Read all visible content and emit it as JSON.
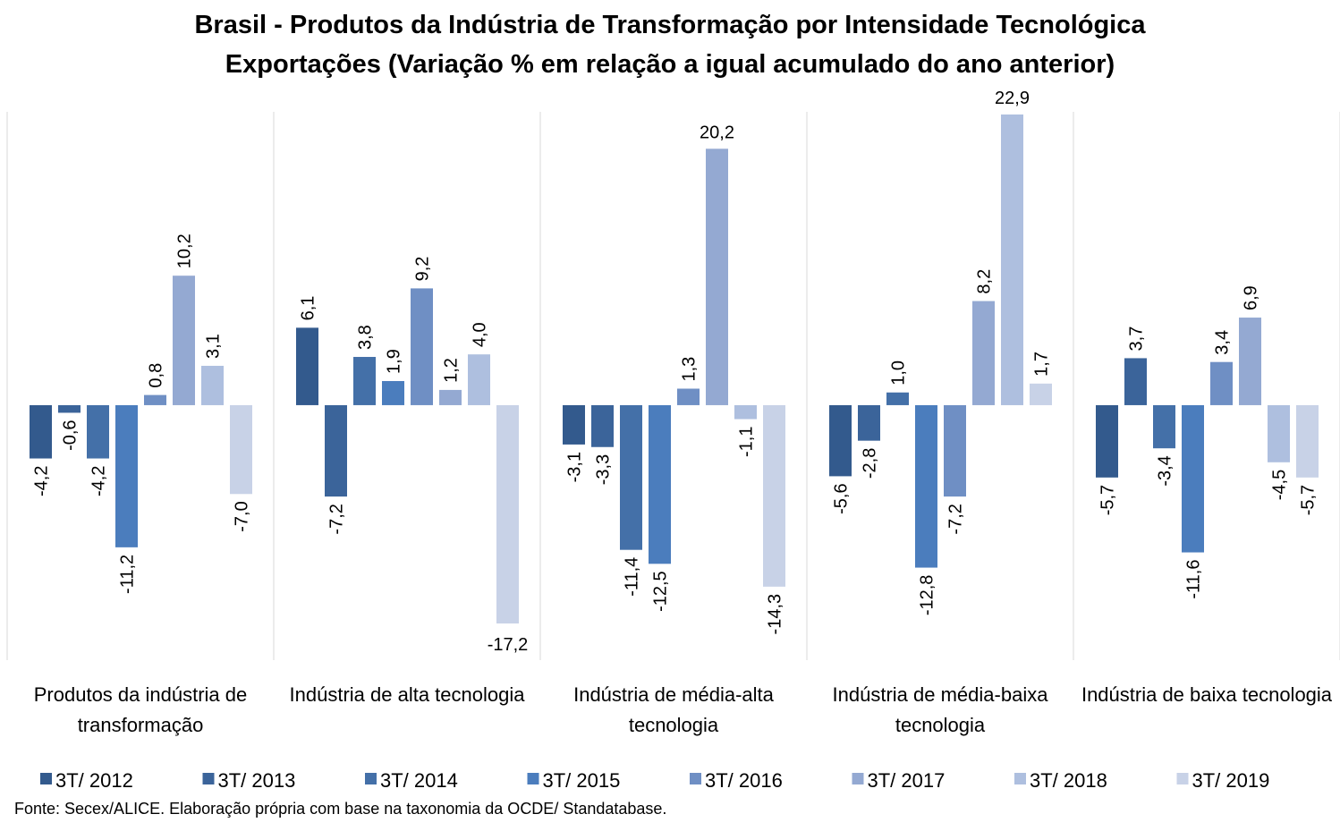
{
  "chart_data": {
    "type": "bar",
    "title": "Brasil - Produtos da Indústria de Transformação por Intensidade Tecnológica",
    "subtitle": "Exportações (Variação % em relação a igual acumulado do ano anterior)",
    "source": "Fonte: Secex/ALICE. Elaboração própria com base na taxonomia da OCDE/ Standatabase.",
    "categories": [
      "Produtos da indústria de transformação",
      "Indústria de alta tecnologia",
      "Indústria de média-alta tecnologia",
      "Indústria de média-baixa tecnologia",
      "Indústria de baixa tecnologia"
    ],
    "series": [
      {
        "name": "3T/ 2012",
        "color": "#335a8d",
        "values": [
          -4.2,
          6.1,
          -3.1,
          -5.6,
          -5.7
        ],
        "value_labels": [
          "-4,2",
          "6,1",
          "-3,1",
          "-5,6",
          "-5,7"
        ]
      },
      {
        "name": "3T/ 2013",
        "color": "#3b649a",
        "values": [
          -0.6,
          -7.2,
          -3.3,
          -2.8,
          3.7
        ],
        "value_labels": [
          "-0,6",
          "-7,2",
          "-3,3",
          "-2,8",
          "3,7"
        ]
      },
      {
        "name": "3T/ 2014",
        "color": "#4470a8",
        "values": [
          -4.2,
          3.8,
          -11.4,
          1.0,
          -3.4
        ],
        "value_labels": [
          "-4,2",
          "3,8",
          "-11,4",
          "1,0",
          "-3,4"
        ]
      },
      {
        "name": "3T/ 2015",
        "color": "#4b7dbd",
        "values": [
          -11.2,
          1.9,
          -12.5,
          -12.8,
          -11.6
        ],
        "value_labels": [
          "-11,2",
          "1,9",
          "-12,5",
          "-12,8",
          "-11,6"
        ]
      },
      {
        "name": "3T/ 2016",
        "color": "#6f8fc4",
        "values": [
          0.8,
          9.2,
          1.3,
          -7.2,
          3.4
        ],
        "value_labels": [
          "0,8",
          "9,2",
          "1,3",
          "-7,2",
          "3,4"
        ]
      },
      {
        "name": "3T/ 2017",
        "color": "#94a9d2",
        "values": [
          10.2,
          1.2,
          20.2,
          8.2,
          6.9
        ],
        "value_labels": [
          "10,2",
          "1,2",
          "20,2",
          "8,2",
          "6,9"
        ]
      },
      {
        "name": "3T/ 2018",
        "color": "#aebfdf",
        "values": [
          3.1,
          4.0,
          -1.1,
          22.9,
          -4.5
        ],
        "value_labels": [
          "3,1",
          "4,0",
          "-1,1",
          "22,9",
          "-4,5"
        ]
      },
      {
        "name": "3T/ 2019",
        "color": "#c8d2e7",
        "values": [
          -7.0,
          -17.2,
          -14.3,
          1.7,
          -5.7
        ],
        "value_labels": [
          "-7,0",
          "-17,2",
          "-14,3",
          "1,7",
          "-5,7"
        ]
      }
    ]
  }
}
